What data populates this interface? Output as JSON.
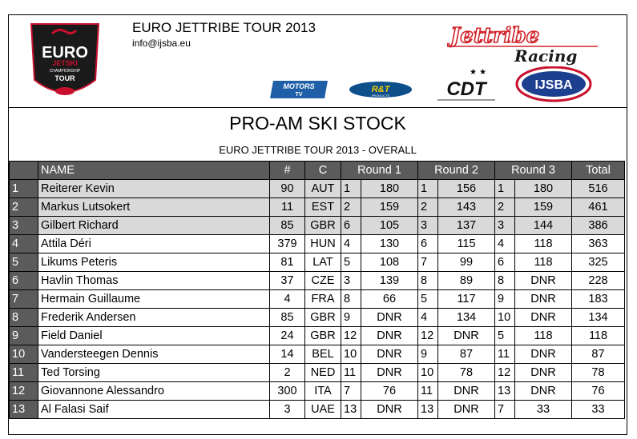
{
  "header": {
    "title": "EURO JETTRIBE TOUR 2013",
    "email": "info@ijsba.eu",
    "logos": {
      "euro": [
        "EURO",
        "JETSKI",
        "CHAMPIONSHIP",
        "TOUR"
      ],
      "jettribe": [
        "Jettribe",
        "Racing"
      ],
      "motors": [
        "MOTORS",
        "TV"
      ],
      "rt": [
        "R&T",
        "PRODUCTS"
      ],
      "cdt": "CDT",
      "ijsba": "IJSBA"
    }
  },
  "event": {
    "title": "PRO-AM SKI STOCK",
    "subtitle": "EURO JETTRIBE TOUR 2013 - OVERALL"
  },
  "table": {
    "columns": [
      "",
      "NAME",
      "#",
      "C",
      "Round 1",
      "Round 2",
      "Round 3",
      "Total"
    ],
    "rows": [
      {
        "pos": "1",
        "name": "Reiterer Kevin",
        "num": "90",
        "country": "AUT",
        "r1p": "1",
        "r1": "180",
        "r2p": "1",
        "r2": "156",
        "r3p": "1",
        "r3": "180",
        "total": "516"
      },
      {
        "pos": "2",
        "name": "Markus Lutsokert",
        "num": "11",
        "country": "EST",
        "r1p": "2",
        "r1": "159",
        "r2p": "2",
        "r2": "143",
        "r3p": "2",
        "r3": "159",
        "total": "461"
      },
      {
        "pos": "3",
        "name": "Gilbert Richard",
        "num": "85",
        "country": "GBR",
        "r1p": "6",
        "r1": "105",
        "r2p": "3",
        "r2": "137",
        "r3p": "3",
        "r3": "144",
        "total": "386"
      },
      {
        "pos": "4",
        "name": "Attila Déri",
        "num": "379",
        "country": "HUN",
        "r1p": "4",
        "r1": "130",
        "r2p": "6",
        "r2": "115",
        "r3p": "4",
        "r3": "118",
        "total": "363"
      },
      {
        "pos": "5",
        "name": "Likums Peteris",
        "num": "81",
        "country": "LAT",
        "r1p": "5",
        "r1": "108",
        "r2p": "7",
        "r2": "99",
        "r3p": "6",
        "r3": "118",
        "total": "325"
      },
      {
        "pos": "6",
        "name": "Havlin Thomas",
        "num": "37",
        "country": "CZE",
        "r1p": "3",
        "r1": "139",
        "r2p": "8",
        "r2": "89",
        "r3p": "8",
        "r3": "DNR",
        "total": "228"
      },
      {
        "pos": "7",
        "name": "Hermain Guillaume",
        "num": "4",
        "country": "FRA",
        "r1p": "8",
        "r1": "66",
        "r2p": "5",
        "r2": "117",
        "r3p": "9",
        "r3": "DNR",
        "total": "183"
      },
      {
        "pos": "8",
        "name": "Frederik Andersen",
        "num": "85",
        "country": "GBR",
        "r1p": "9",
        "r1": "DNR",
        "r2p": "4",
        "r2": "134",
        "r3p": "10",
        "r3": "DNR",
        "total": "134"
      },
      {
        "pos": "9",
        "name": "Field Daniel",
        "num": "24",
        "country": "GBR",
        "r1p": "12",
        "r1": "DNR",
        "r2p": "12",
        "r2": "DNR",
        "r3p": "5",
        "r3": "118",
        "total": "118"
      },
      {
        "pos": "10",
        "name": "Vandersteegen Dennis",
        "num": "14",
        "country": "BEL",
        "r1p": "10",
        "r1": "DNR",
        "r2p": "9",
        "r2": "87",
        "r3p": "11",
        "r3": "DNR",
        "total": "87"
      },
      {
        "pos": "11",
        "name": "Ted Torsing",
        "num": "2",
        "country": "NED",
        "r1p": "11",
        "r1": "DNR",
        "r2p": "10",
        "r2": "78",
        "r3p": "12",
        "r3": "DNR",
        "total": "78"
      },
      {
        "pos": "12",
        "name": "Giovannone Alessandro",
        "num": "300",
        "country": "ITA",
        "r1p": "7",
        "r1": "76",
        "r2p": "11",
        "r2": "DNR",
        "r3p": "13",
        "r3": "DNR",
        "total": "76"
      },
      {
        "pos": "13",
        "name": "Al Falasi Saif",
        "num": "3",
        "country": "UAE",
        "r1p": "13",
        "r1": "DNR",
        "r2p": "13",
        "r2": "DNR",
        "r3p": "7",
        "r3": "33",
        "total": "33"
      }
    ]
  },
  "colors": {
    "header_fill": "#5b5b5b",
    "podium_fill": "#d9d9d9",
    "jettribe_red": "#d2232a",
    "ijsba_blue": "#1d3f8f"
  }
}
